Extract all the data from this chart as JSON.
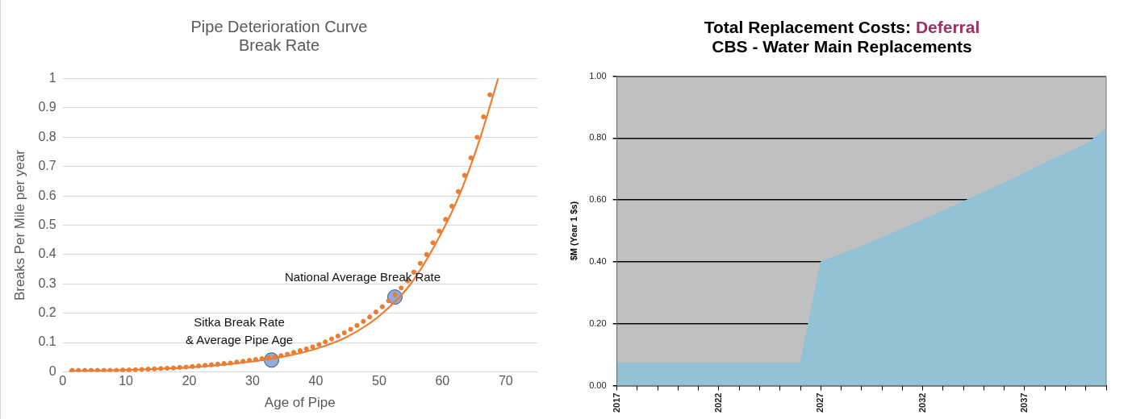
{
  "chart_data": [
    {
      "type": "scatter",
      "title": "Pipe Deterioration Curve",
      "subtitle": "Break Rate",
      "xlabel": "Age of Pipe",
      "ylabel": "Breaks Per Mile per year",
      "xlim": [
        0,
        75
      ],
      "xticks": [
        0,
        10,
        20,
        30,
        40,
        50,
        60,
        70
      ],
      "ylim": [
        0,
        1
      ],
      "yticks": [
        0,
        0.1,
        0.2,
        0.3,
        0.4,
        0.5,
        0.6,
        0.7,
        0.8,
        0.9,
        1
      ],
      "grid": "y",
      "series": [
        {
          "type": "scatter",
          "marker": "circle",
          "color": "#ed7d31",
          "x": [
            1.5,
            2.5,
            3.5,
            4.5,
            5.5,
            6.5,
            7.5,
            8.5,
            9.5,
            10.5,
            11.5,
            12.5,
            13.5,
            14.5,
            15.5,
            16.5,
            17.5,
            18.5,
            19.5,
            20.5,
            21.5,
            22.5,
            23.5,
            24.5,
            25.5,
            26.5,
            27.5,
            28.5,
            29.5,
            30.5,
            31.5,
            32.5,
            33.5,
            34.5,
            35.5,
            36.5,
            37.5,
            38.5,
            39.5,
            40.5,
            41.5,
            42.5,
            43.5,
            44.5,
            45.5,
            46.5,
            47.5,
            48.5,
            49.5,
            50.5,
            51.5,
            52.5,
            53.5,
            54.5,
            55.5,
            56.5,
            57.5,
            58.5,
            59.5,
            60.5,
            61.5,
            62.5,
            63.5,
            64.5,
            65.5,
            66.5,
            67.5
          ],
          "values": [
            0.005,
            0.005,
            0.005,
            0.005,
            0.005,
            0.005,
            0.005,
            0.005,
            0.006,
            0.006,
            0.007,
            0.008,
            0.009,
            0.01,
            0.011,
            0.012,
            0.013,
            0.015,
            0.016,
            0.018,
            0.02,
            0.022,
            0.024,
            0.026,
            0.028,
            0.03,
            0.033,
            0.036,
            0.039,
            0.042,
            0.045,
            0.048,
            0.05,
            0.055,
            0.06,
            0.066,
            0.072,
            0.078,
            0.085,
            0.093,
            0.102,
            0.112,
            0.122,
            0.133,
            0.145,
            0.158,
            0.172,
            0.187,
            0.204,
            0.222,
            0.242,
            0.263,
            0.286,
            0.31,
            0.34,
            0.37,
            0.4,
            0.44,
            0.48,
            0.52,
            0.565,
            0.615,
            0.67,
            0.73,
            0.8,
            0.87,
            0.945
          ]
        },
        {
          "type": "line",
          "marker": "none",
          "color": "#ed7d31",
          "x": [
            1,
            10,
            20,
            30,
            35,
            40,
            45,
            50,
            55,
            60,
            63,
            66,
            68.8
          ],
          "values": [
            0.003,
            0.006,
            0.015,
            0.035,
            0.052,
            0.078,
            0.12,
            0.19,
            0.3,
            0.48,
            0.62,
            0.8,
            1.0
          ]
        },
        {
          "type": "scatter",
          "marker": "circle",
          "color": "#4472c4",
          "x": [
            33,
            52.5
          ],
          "values": [
            0.04,
            0.255
          ]
        }
      ],
      "annotations": [
        {
          "text": "National Average Break Rate",
          "x": 52.5,
          "y": 0.255
        },
        {
          "text": "Sitka Break Rate\n& Average Pipe Age",
          "x": 33,
          "y": 0.04
        }
      ]
    },
    {
      "type": "area",
      "title": "Total Replacement Costs: Deferral",
      "subtitle": "CBS - Water Main Replacements",
      "ylabel": "$M (Year 1 $s)",
      "xlim": [
        2017,
        2041
      ],
      "xticks": [
        2017,
        {
          "value": 2018,
          "label": null
        },
        {
          "value": 2019,
          "label": null
        },
        {
          "value": 2020,
          "label": null
        },
        {
          "value": 2021,
          "label": null
        },
        2022,
        {
          "value": 2023,
          "label": null
        },
        {
          "value": 2024,
          "label": null
        },
        {
          "value": 2025,
          "label": null
        },
        {
          "value": 2026,
          "label": null
        },
        2027,
        {
          "value": 2028,
          "label": null
        },
        {
          "value": 2029,
          "label": null
        },
        {
          "value": 2030,
          "label": null
        },
        {
          "value": 2031,
          "label": null
        },
        2032,
        {
          "value": 2033,
          "label": null
        },
        {
          "value": 2034,
          "label": null
        },
        {
          "value": 2035,
          "label": null
        },
        {
          "value": 2036,
          "label": null
        },
        2037,
        {
          "value": 2038,
          "label": null
        },
        {
          "value": 2039,
          "label": null
        },
        {
          "value": 2040,
          "label": null
        },
        {
          "value": 2041,
          "label": null
        }
      ],
      "ylim": [
        0,
        1
      ],
      "yticks": [
        {
          "value": 0,
          "label": "0.00"
        },
        {
          "value": 0.2,
          "label": "0.20"
        },
        {
          "value": 0.4,
          "label": "0.40"
        },
        {
          "value": 0.6,
          "label": "0.60"
        },
        {
          "value": 0.8,
          "label": "0.80"
        },
        {
          "value": 1,
          "label": "1.00"
        }
      ],
      "grid": "y",
      "series": [
        {
          "color": "#92c2d6",
          "x": [
            2017,
            2026,
            2027,
            2028,
            2029,
            2030,
            2031,
            2032,
            2033,
            2034,
            2035,
            2036,
            2037,
            2038,
            2039,
            2040,
            2041
          ],
          "values": [
            0.073,
            0.073,
            0.4,
            0.425,
            0.45,
            0.478,
            0.507,
            0.535,
            0.565,
            0.595,
            0.625,
            0.655,
            0.687,
            0.72,
            0.75,
            0.78,
            0.83
          ]
        }
      ]
    }
  ]
}
